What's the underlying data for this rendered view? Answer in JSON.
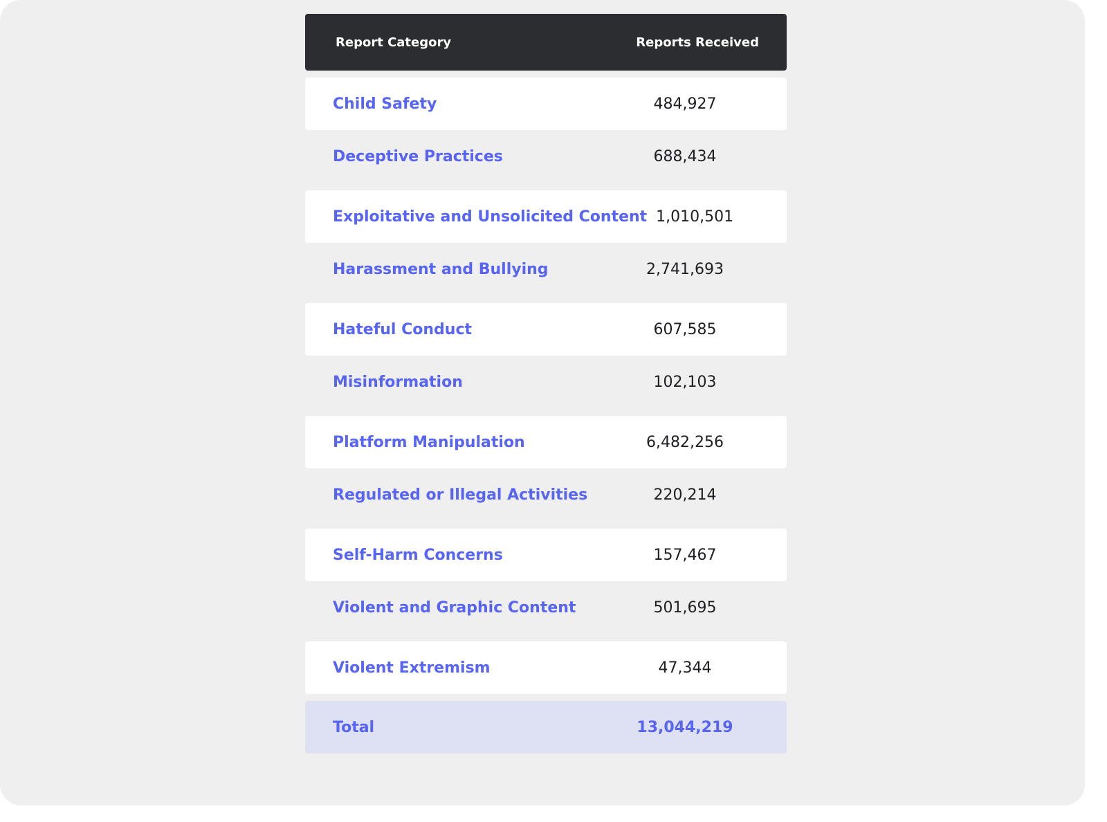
{
  "table": {
    "header": {
      "category": "Report Category",
      "reports": "Reports Received"
    },
    "rows": [
      {
        "category": "Child Safety",
        "reports": "484,927"
      },
      {
        "category": "Deceptive Practices",
        "reports": "688,434"
      },
      {
        "category": "Exploitative and Unsolicited Content",
        "reports": "1,010,501"
      },
      {
        "category": "Harassment and Bullying",
        "reports": "2,741,693"
      },
      {
        "category": "Hateful Conduct",
        "reports": "607,585"
      },
      {
        "category": "Misinformation",
        "reports": "102,103"
      },
      {
        "category": "Platform Manipulation",
        "reports": "6,482,256"
      },
      {
        "category": "Regulated or Illegal Activities",
        "reports": "220,214"
      },
      {
        "category": "Self-Harm Concerns",
        "reports": "157,467"
      },
      {
        "category": "Violent and Graphic Content",
        "reports": "501,695"
      },
      {
        "category": "Violent Extremism",
        "reports": "47,344"
      }
    ],
    "total": {
      "label": "Total",
      "reports": "13,044,219"
    }
  },
  "colors": {
    "background": "#efefef",
    "header_bg": "#2b2d31",
    "accent": "#5865f2",
    "total_bg": "#dee0f3"
  }
}
